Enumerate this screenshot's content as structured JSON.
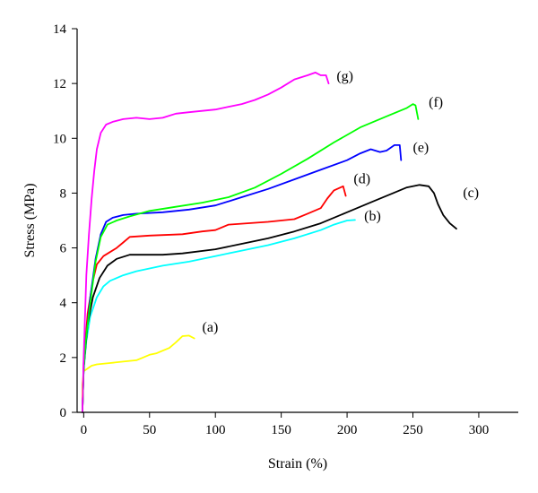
{
  "chart_data": {
    "type": "line",
    "xlabel": "Strain (%)",
    "ylabel": "Stress (MPa)",
    "xlim": [
      -5,
      330
    ],
    "ylim": [
      0,
      14
    ],
    "xticks": [
      0,
      50,
      100,
      150,
      200,
      250,
      300
    ],
    "yticks": [
      0,
      2,
      4,
      6,
      8,
      10,
      12,
      14
    ],
    "grid": false,
    "legend": "none",
    "series": [
      {
        "name": "(a)",
        "color": "#ffff00",
        "label_at": [
          90,
          2.95
        ],
        "points": [
          [
            -1,
            0
          ],
          [
            -1,
            1.0
          ],
          [
            0,
            1.5
          ],
          [
            3,
            1.6
          ],
          [
            6,
            1.7
          ],
          [
            10,
            1.75
          ],
          [
            20,
            1.8
          ],
          [
            30,
            1.85
          ],
          [
            40,
            1.9
          ],
          [
            45,
            2.0
          ],
          [
            50,
            2.1
          ],
          [
            55,
            2.15
          ],
          [
            60,
            2.25
          ],
          [
            65,
            2.35
          ],
          [
            70,
            2.55
          ],
          [
            75,
            2.78
          ],
          [
            80,
            2.8
          ],
          [
            84,
            2.7
          ]
        ]
      },
      {
        "name": "(b)",
        "color": "#00ffff",
        "label_at": [
          213,
          7.0
        ],
        "points": [
          [
            -1,
            0
          ],
          [
            0,
            1.5
          ],
          [
            2,
            2.6
          ],
          [
            5,
            3.5
          ],
          [
            10,
            4.2
          ],
          [
            15,
            4.6
          ],
          [
            20,
            4.8
          ],
          [
            30,
            5.0
          ],
          [
            40,
            5.15
          ],
          [
            50,
            5.25
          ],
          [
            60,
            5.35
          ],
          [
            80,
            5.5
          ],
          [
            100,
            5.7
          ],
          [
            120,
            5.9
          ],
          [
            140,
            6.1
          ],
          [
            160,
            6.35
          ],
          [
            180,
            6.65
          ],
          [
            190,
            6.85
          ],
          [
            200,
            7.0
          ],
          [
            206,
            7.02
          ]
        ]
      },
      {
        "name": "(c)",
        "color": "#000000",
        "label_at": [
          288,
          7.85
        ],
        "points": [
          [
            -1,
            0
          ],
          [
            0,
            1.6
          ],
          [
            3,
            3.2
          ],
          [
            7,
            4.2
          ],
          [
            12,
            4.9
          ],
          [
            18,
            5.35
          ],
          [
            25,
            5.6
          ],
          [
            35,
            5.75
          ],
          [
            50,
            5.75
          ],
          [
            60,
            5.75
          ],
          [
            75,
            5.8
          ],
          [
            100,
            5.95
          ],
          [
            120,
            6.15
          ],
          [
            140,
            6.35
          ],
          [
            160,
            6.6
          ],
          [
            180,
            6.9
          ],
          [
            200,
            7.3
          ],
          [
            220,
            7.7
          ],
          [
            235,
            8.0
          ],
          [
            245,
            8.2
          ],
          [
            255,
            8.3
          ],
          [
            262,
            8.25
          ],
          [
            266,
            8.0
          ],
          [
            269,
            7.6
          ],
          [
            273,
            7.2
          ],
          [
            278,
            6.9
          ],
          [
            283,
            6.7
          ]
        ]
      },
      {
        "name": "(d)",
        "color": "#ff0000",
        "label_at": [
          205,
          8.35
        ],
        "points": [
          [
            -1,
            0
          ],
          [
            0,
            1.8
          ],
          [
            3,
            3.6
          ],
          [
            7,
            4.8
          ],
          [
            10,
            5.4
          ],
          [
            15,
            5.7
          ],
          [
            20,
            5.85
          ],
          [
            25,
            6.0
          ],
          [
            30,
            6.2
          ],
          [
            35,
            6.4
          ],
          [
            50,
            6.45
          ],
          [
            75,
            6.5
          ],
          [
            90,
            6.6
          ],
          [
            100,
            6.65
          ],
          [
            110,
            6.85
          ],
          [
            140,
            6.95
          ],
          [
            160,
            7.05
          ],
          [
            170,
            7.25
          ],
          [
            180,
            7.45
          ],
          [
            185,
            7.8
          ],
          [
            190,
            8.1
          ],
          [
            197,
            8.25
          ],
          [
            199,
            7.9
          ]
        ]
      },
      {
        "name": "(e)",
        "color": "#0000ff",
        "label_at": [
          250,
          9.5
        ],
        "points": [
          [
            -1,
            0
          ],
          [
            0,
            1.6
          ],
          [
            2,
            2.8
          ],
          [
            5,
            4.2
          ],
          [
            9,
            5.6
          ],
          [
            13,
            6.5
          ],
          [
            17,
            6.95
          ],
          [
            22,
            7.1
          ],
          [
            30,
            7.2
          ],
          [
            40,
            7.25
          ],
          [
            60,
            7.3
          ],
          [
            80,
            7.4
          ],
          [
            100,
            7.55
          ],
          [
            120,
            7.85
          ],
          [
            140,
            8.15
          ],
          [
            160,
            8.5
          ],
          [
            180,
            8.85
          ],
          [
            200,
            9.2
          ],
          [
            210,
            9.45
          ],
          [
            218,
            9.6
          ],
          [
            225,
            9.5
          ],
          [
            230,
            9.55
          ],
          [
            236,
            9.75
          ],
          [
            240,
            9.75
          ],
          [
            241,
            9.2
          ]
        ]
      },
      {
        "name": "(f)",
        "color": "#00ff00",
        "label_at": [
          262,
          11.15
        ],
        "points": [
          [
            -1,
            0
          ],
          [
            0,
            1.6
          ],
          [
            2,
            2.8
          ],
          [
            5,
            4.0
          ],
          [
            9,
            5.5
          ],
          [
            13,
            6.4
          ],
          [
            18,
            6.85
          ],
          [
            25,
            7.0
          ],
          [
            35,
            7.15
          ],
          [
            50,
            7.35
          ],
          [
            70,
            7.5
          ],
          [
            90,
            7.65
          ],
          [
            110,
            7.85
          ],
          [
            130,
            8.2
          ],
          [
            150,
            8.7
          ],
          [
            170,
            9.25
          ],
          [
            190,
            9.85
          ],
          [
            210,
            10.4
          ],
          [
            230,
            10.8
          ],
          [
            245,
            11.1
          ],
          [
            250,
            11.25
          ],
          [
            252,
            11.2
          ],
          [
            254,
            10.7
          ]
        ]
      },
      {
        "name": "(g)",
        "color": "#ff00ff",
        "label_at": [
          192,
          12.1
        ],
        "points": [
          [
            -1,
            0
          ],
          [
            0,
            2.0
          ],
          [
            1,
            3.5
          ],
          [
            2,
            5.0
          ],
          [
            4,
            6.5
          ],
          [
            6,
            7.8
          ],
          [
            8,
            8.8
          ],
          [
            10,
            9.6
          ],
          [
            13,
            10.2
          ],
          [
            17,
            10.5
          ],
          [
            22,
            10.6
          ],
          [
            30,
            10.7
          ],
          [
            40,
            10.75
          ],
          [
            50,
            10.7
          ],
          [
            60,
            10.75
          ],
          [
            70,
            10.9
          ],
          [
            80,
            10.95
          ],
          [
            90,
            11.0
          ],
          [
            100,
            11.05
          ],
          [
            110,
            11.15
          ],
          [
            120,
            11.25
          ],
          [
            130,
            11.4
          ],
          [
            140,
            11.6
          ],
          [
            150,
            11.85
          ],
          [
            160,
            12.15
          ],
          [
            170,
            12.3
          ],
          [
            176,
            12.4
          ],
          [
            180,
            12.3
          ],
          [
            184,
            12.3
          ],
          [
            186,
            12.0
          ]
        ]
      }
    ]
  }
}
